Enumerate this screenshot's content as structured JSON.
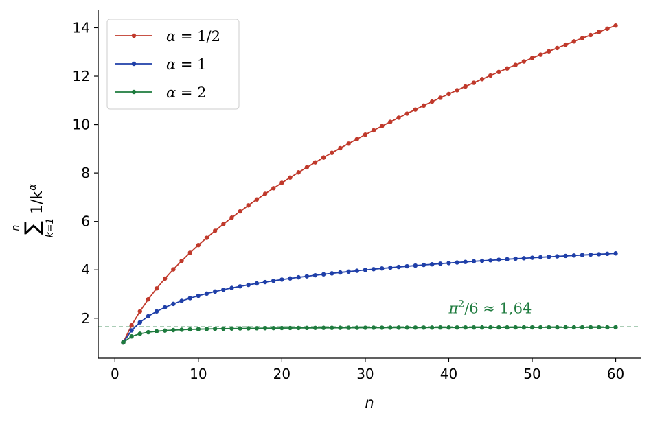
{
  "chart_data": {
    "type": "line",
    "xlabel": "n",
    "ylabel": {
      "sum_top": "n",
      "sum_symbol": "∑",
      "sum_bottom": "k=1",
      "term": "1/k",
      "term_exp": "α"
    },
    "xlim": [
      -2,
      63
    ],
    "ylim": [
      0.35,
      14.75
    ],
    "x_ticks": [
      0,
      10,
      20,
      30,
      40,
      50,
      60
    ],
    "y_ticks": [
      2,
      4,
      6,
      8,
      10,
      12,
      14
    ],
    "grid": false,
    "legend_position": "top-left",
    "n_range": [
      1,
      60
    ],
    "series": [
      {
        "name": "α = 1/2",
        "legend_symbol": "α",
        "legend_rhs": "= 1/2",
        "alpha": 0.5,
        "color": "#c0392b",
        "values": [
          1.0,
          1.707,
          2.284,
          2.784,
          3.232,
          3.64,
          4.018,
          4.371,
          4.705,
          5.021,
          5.322,
          5.611,
          5.888,
          6.155,
          6.413,
          6.663,
          6.906,
          7.141,
          7.37,
          7.594,
          7.812,
          8.025,
          8.234,
          8.438,
          8.638,
          8.834,
          9.026,
          9.215,
          9.401,
          9.584,
          9.763,
          9.94,
          10.114,
          10.286,
          10.455,
          10.621,
          10.786,
          10.948,
          11.108,
          11.266,
          11.422,
          11.576,
          11.729,
          11.879,
          12.028,
          12.176,
          12.321,
          12.466,
          12.608,
          12.75,
          12.89,
          13.028,
          13.165,
          13.301,
          13.436,
          13.57,
          13.702,
          13.833,
          13.963,
          14.092
        ]
      },
      {
        "name": "α = 1",
        "legend_symbol": "α",
        "legend_rhs": "= 1",
        "alpha": 1,
        "color": "#1f3fa8",
        "values": [
          1.0,
          1.5,
          1.833,
          2.083,
          2.283,
          2.45,
          2.593,
          2.718,
          2.829,
          2.929,
          3.02,
          3.103,
          3.18,
          3.252,
          3.318,
          3.381,
          3.44,
          3.495,
          3.548,
          3.598,
          3.645,
          3.691,
          3.734,
          3.776,
          3.816,
          3.854,
          3.891,
          3.927,
          3.961,
          3.995,
          4.027,
          4.058,
          4.089,
          4.118,
          4.147,
          4.175,
          4.202,
          4.228,
          4.254,
          4.279,
          4.303,
          4.327,
          4.35,
          4.373,
          4.395,
          4.417,
          4.438,
          4.459,
          4.479,
          4.499,
          4.519,
          4.538,
          4.557,
          4.575,
          4.594,
          4.611,
          4.629,
          4.646,
          4.663,
          4.68
        ]
      },
      {
        "name": "α = 2",
        "legend_symbol": "α",
        "legend_rhs": "= 2",
        "alpha": 2,
        "color": "#1e7b3e",
        "values": [
          1.0,
          1.25,
          1.361,
          1.424,
          1.464,
          1.491,
          1.512,
          1.527,
          1.54,
          1.55,
          1.558,
          1.565,
          1.571,
          1.576,
          1.58,
          1.584,
          1.587,
          1.59,
          1.593,
          1.596,
          1.598,
          1.6,
          1.602,
          1.603,
          1.605,
          1.606,
          1.608,
          1.609,
          1.61,
          1.611,
          1.612,
          1.613,
          1.614,
          1.615,
          1.616,
          1.617,
          1.617,
          1.618,
          1.619,
          1.619,
          1.62,
          1.62,
          1.621,
          1.622,
          1.622,
          1.622,
          1.623,
          1.623,
          1.624,
          1.624,
          1.625,
          1.625,
          1.625,
          1.626,
          1.626,
          1.626,
          1.627,
          1.627,
          1.627,
          1.628
        ]
      }
    ],
    "reference_line": {
      "y": 1.6449,
      "color": "#1e7b3e",
      "style": "dashed"
    },
    "annotation": {
      "pi": "π",
      "exp": "2",
      "rest": "/6 ≈ 1,64",
      "x": 40,
      "y": 2.2,
      "color": "#1e7b3e"
    }
  }
}
